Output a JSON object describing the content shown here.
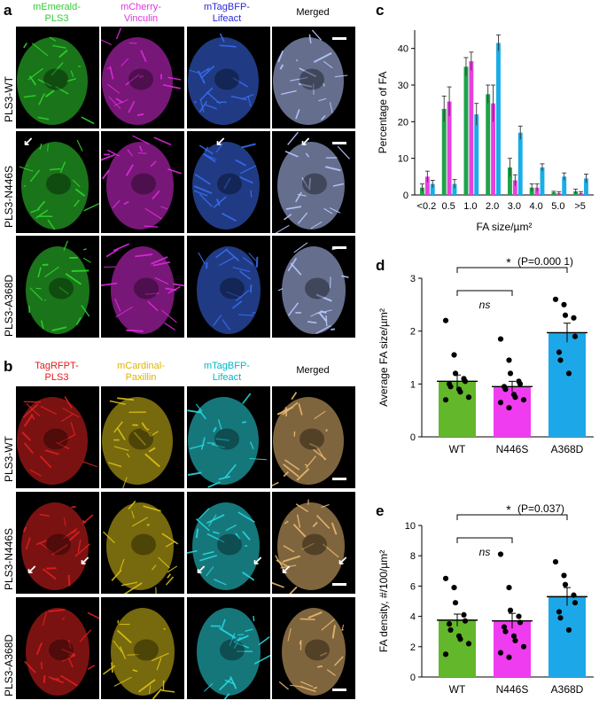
{
  "panels": {
    "a": {
      "label": "a",
      "headers": [
        {
          "lines": [
            "mEmerald-",
            "PLS3"
          ],
          "color": "#33cc33"
        },
        {
          "lines": [
            "mCherry-",
            "Vinculin"
          ],
          "color": "#e033e0"
        },
        {
          "lines": [
            "mTagBFP-",
            "Lifeact"
          ],
          "color": "#2a2ad8"
        },
        {
          "lines": [
            "Merged"
          ],
          "color": "#000000"
        }
      ],
      "rows": [
        "PLS3-WT",
        "PLS3-N446S",
        "PLS3-A368D"
      ],
      "channel_colors": [
        "#2fd42f",
        "#d82ad8",
        "#3a6cf0",
        "#b8c8ff"
      ]
    },
    "b": {
      "label": "b",
      "headers": [
        {
          "lines": [
            "TagRFPT-",
            "PLS3"
          ],
          "color": "#e81818"
        },
        {
          "lines": [
            "mCardinal-",
            "Paxillin"
          ],
          "color": "#e0b400"
        },
        {
          "lines": [
            "mTagBFP-",
            "Lifeact"
          ],
          "color": "#00b8c8"
        },
        {
          "lines": [
            "Merged"
          ],
          "color": "#000000"
        }
      ],
      "rows": [
        "PLS3-WT",
        "PLS3-N446S",
        "PLS3-A368D"
      ],
      "channel_colors": [
        "#e02020",
        "#d8c018",
        "#28d8e0",
        "#e8b870"
      ]
    },
    "c": {
      "label": "c"
    },
    "d": {
      "label": "d"
    },
    "e": {
      "label": "e"
    }
  },
  "chart_data": [
    {
      "id": "c",
      "type": "bar",
      "ylabel": "Percentage of FA",
      "xlabel": "FA size/µm²",
      "ylim": [
        0,
        45
      ],
      "yticks": [
        0,
        10,
        20,
        30,
        40
      ],
      "categories": [
        "<0.2",
        "0.5",
        "1.0",
        "2.0",
        "3.0",
        "4.0",
        "5.0",
        ">5"
      ],
      "series": [
        {
          "color": "#1ea34a",
          "values": [
            2,
            23.5,
            35,
            27.5,
            7.5,
            2,
            0.7,
            1
          ],
          "errors": [
            1,
            3.5,
            2.5,
            2.5,
            2.5,
            1,
            0.3,
            0.6
          ]
        },
        {
          "color": "#e840e0",
          "values": [
            5,
            25.5,
            36.5,
            25,
            4,
            2,
            0.5,
            0.5
          ],
          "errors": [
            1.5,
            4,
            2.5,
            5,
            1.5,
            1,
            0.4,
            0.4
          ]
        },
        {
          "color": "#18aee8",
          "values": [
            3,
            3,
            22,
            41.5,
            17,
            7.5,
            5,
            4.5
          ],
          "errors": [
            1,
            1.2,
            3,
            2.2,
            1.8,
            1,
            1,
            1.2
          ]
        }
      ]
    },
    {
      "id": "d",
      "type": "bar",
      "ylabel": "Average FA size/µm²",
      "ylim": [
        0,
        3
      ],
      "yticks": [
        0,
        1,
        2,
        3
      ],
      "categories": [
        "WT",
        "N446S",
        "A368D"
      ],
      "values": [
        1.05,
        0.95,
        1.97
      ],
      "errors": [
        0.12,
        0.1,
        0.18
      ],
      "colors": [
        "#62b82a",
        "#f03cf0",
        "#1ca8e8"
      ],
      "points": [
        [
          2.2,
          1.55,
          1.2,
          1.1,
          1.05,
          1.0,
          0.95,
          0.9,
          0.85,
          0.75,
          0.7
        ],
        [
          1.85,
          1.45,
          1.2,
          1.05,
          1.0,
          0.95,
          0.9,
          0.8,
          0.75,
          0.7,
          0.65,
          0.55
        ],
        [
          2.6,
          2.5,
          2.3,
          2.25,
          1.9,
          1.6,
          1.45,
          1.2
        ]
      ],
      "annotations": {
        "sig": "*",
        "p": "(P=0.000 1)",
        "ns": "ns"
      }
    },
    {
      "id": "e",
      "type": "bar",
      "ylabel": "FA density, #/100/µm²",
      "ylim": [
        0,
        10
      ],
      "yticks": [
        0,
        2,
        4,
        6,
        8,
        10
      ],
      "categories": [
        "WT",
        "N446S",
        "A368D"
      ],
      "values": [
        3.75,
        3.7,
        5.3
      ],
      "errors": [
        0.4,
        0.5,
        0.6
      ],
      "colors": [
        "#62b82a",
        "#f03cf0",
        "#1ca8e8"
      ],
      "points": [
        [
          6.5,
          5.9,
          4.9,
          4.1,
          3.7,
          3.5,
          3.1,
          2.7,
          2.5,
          2.2,
          1.5
        ],
        [
          8.1,
          5.9,
          4.4,
          4.0,
          3.6,
          3.3,
          3.0,
          2.7,
          2.4,
          2.0,
          1.6,
          1.3
        ],
        [
          7.6,
          6.7,
          6.1,
          5.4,
          4.9,
          4.3,
          3.9,
          3.1
        ]
      ],
      "annotations": {
        "sig": "*",
        "p": "(P=0.037)",
        "ns": "ns"
      }
    }
  ]
}
